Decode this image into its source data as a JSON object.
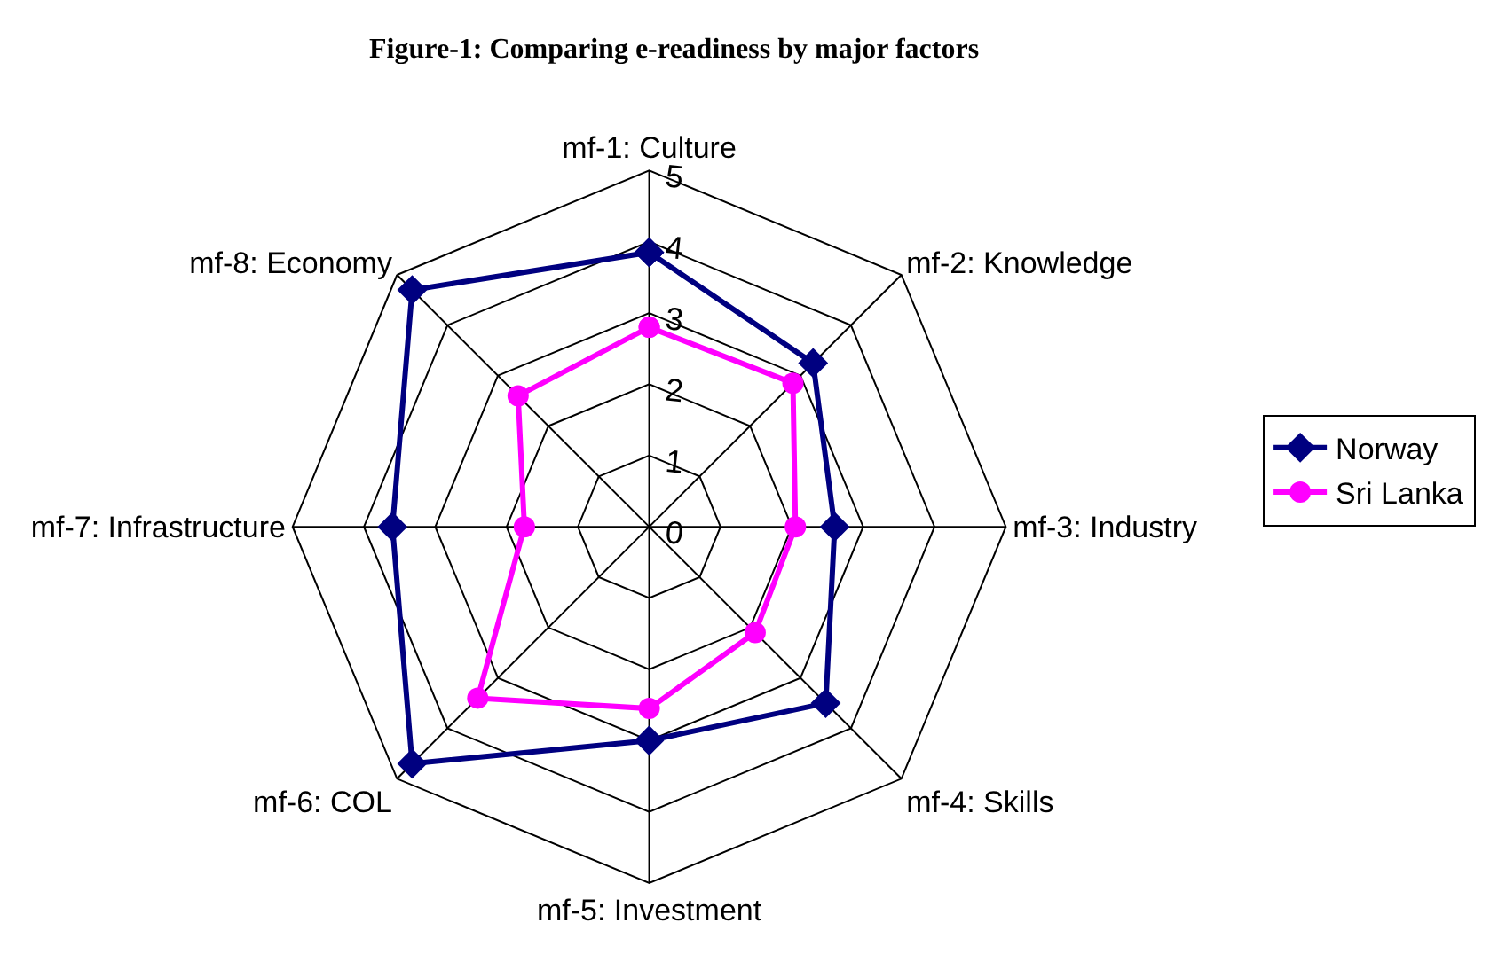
{
  "chart_data": {
    "type": "radar",
    "title": "Figure-1: Comparing e-readiness by major factors",
    "categories": [
      "mf-1: Culture",
      "mf-2: Knowledge",
      "mf-3: Industry",
      "mf-4: Skills",
      "mf-5: Investment",
      "mf-6: COL",
      "mf-7: Infrastructure",
      "mf-8: Economy"
    ],
    "series": [
      {
        "name": "Norway",
        "color": "#000080",
        "marker": "diamond",
        "values": [
          3.85,
          3.25,
          2.6,
          3.5,
          3.0,
          4.7,
          3.6,
          4.7
        ]
      },
      {
        "name": "Sri Lanka",
        "color": "#ff00ff",
        "marker": "circle",
        "values": [
          2.8,
          2.85,
          2.05,
          2.1,
          2.55,
          3.4,
          1.75,
          2.6
        ]
      }
    ],
    "ylim": [
      0,
      5
    ],
    "yticks": [
      0,
      1,
      2,
      3,
      4,
      5
    ],
    "grid": true,
    "legend": "right"
  }
}
